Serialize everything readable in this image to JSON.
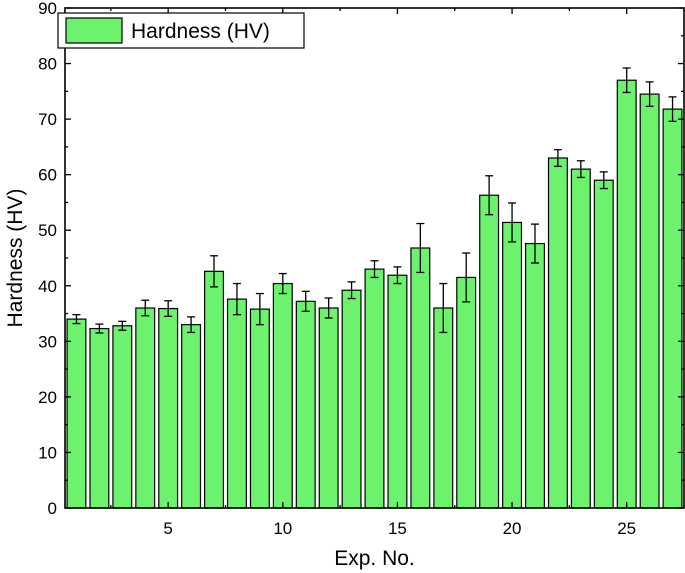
{
  "chart_data": {
    "type": "bar",
    "title": "",
    "xlabel": "Exp. No.",
    "ylabel": "Hardness (HV)",
    "xlim": [
      0.5,
      27.5
    ],
    "ylim": [
      0,
      90
    ],
    "x_ticks": [
      5,
      10,
      15,
      20,
      25
    ],
    "y_ticks": [
      0,
      10,
      20,
      30,
      40,
      50,
      60,
      70,
      80,
      90
    ],
    "legend_position": "top-left",
    "grid": false,
    "bar_color": "#6cf26c",
    "series": [
      {
        "name": "Hardness (HV)",
        "x": [
          1,
          2,
          3,
          4,
          5,
          6,
          7,
          8,
          9,
          10,
          11,
          12,
          13,
          14,
          15,
          16,
          17,
          18,
          19,
          20,
          21,
          22,
          23,
          24,
          25,
          26,
          27
        ],
        "values": [
          34.0,
          32.3,
          32.8,
          36.0,
          35.9,
          33.0,
          42.6,
          37.6,
          35.8,
          40.4,
          37.2,
          36.0,
          39.2,
          43.0,
          41.9,
          46.8,
          36.0,
          41.5,
          56.3,
          51.4,
          47.6,
          63.0,
          61.0,
          59.0,
          77.0,
          74.5,
          71.8
        ],
        "errors": [
          0.8,
          0.8,
          0.8,
          1.4,
          1.4,
          1.4,
          2.8,
          2.8,
          2.8,
          1.8,
          1.8,
          1.8,
          1.5,
          1.5,
          1.5,
          4.4,
          4.4,
          4.4,
          3.5,
          3.5,
          3.5,
          1.5,
          1.5,
          1.5,
          2.2,
          2.2,
          2.2
        ]
      }
    ]
  }
}
